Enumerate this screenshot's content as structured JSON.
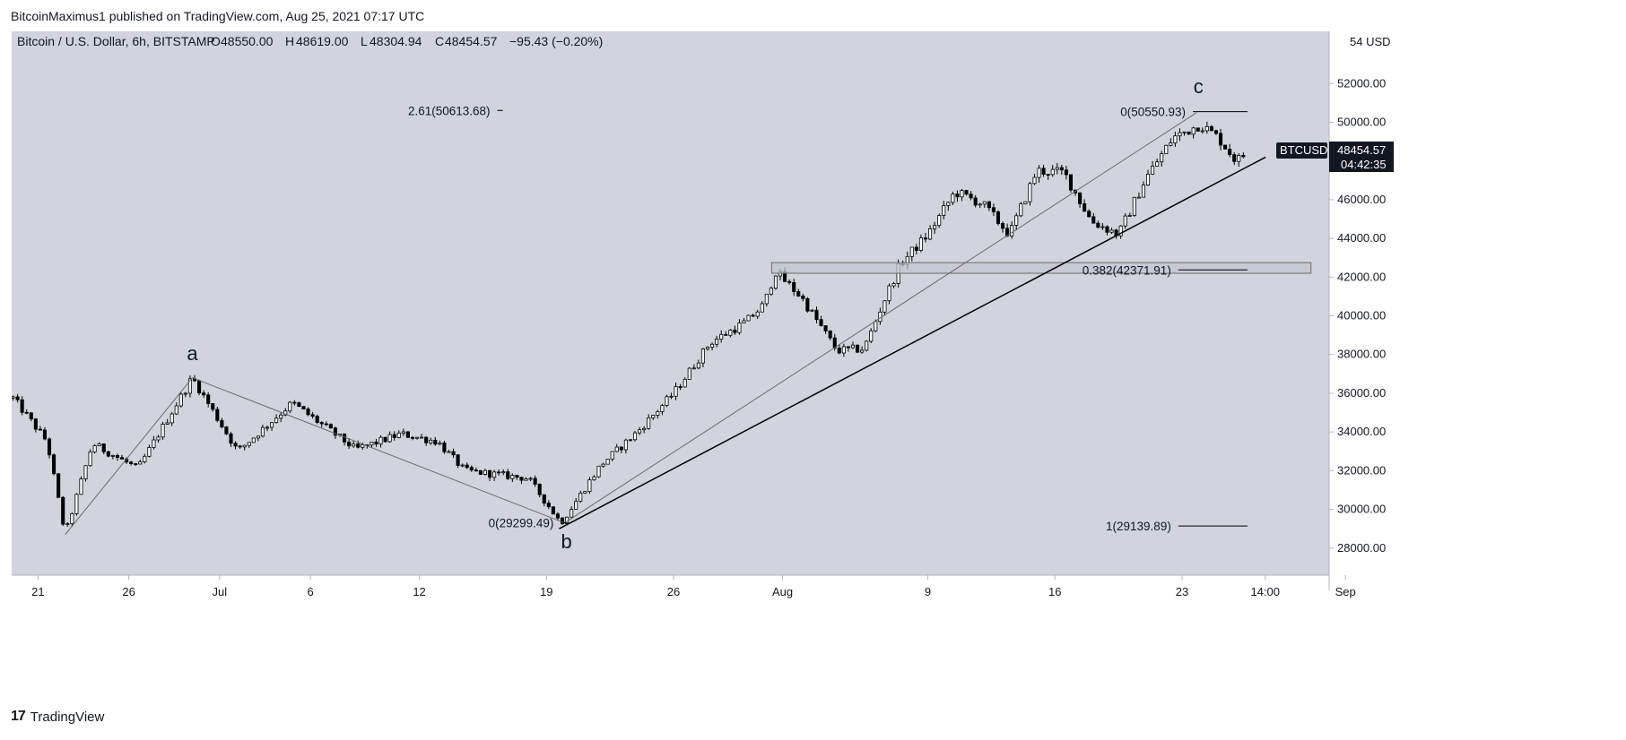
{
  "header": {
    "text": "BitcoinMaximus1 published on TradingView.com, Aug 25, 2021 07:17 UTC"
  },
  "footer": {
    "logo": "17",
    "brand": "TradingView"
  },
  "legend": {
    "symbol": "Bitcoin / U.S. Dollar, 6h, BITSTAMP",
    "o_label": "O",
    "o": "48550.00",
    "h_label": "H",
    "h": "48619.00",
    "l_label": "L",
    "l": "48304.94",
    "c_label": "C",
    "c": "48454.57",
    "change": "−95.43 (−0.20%)"
  },
  "price_tag": {
    "symbol": "BTCUSD",
    "price": "48454.57",
    "countdown": "04:42:35",
    "value": 48454.57
  },
  "colors": {
    "plot_bg": "#d1d4dc",
    "candle_up": "#ffffff",
    "candle_down": "#000000",
    "line": "#000000",
    "thin_line": "#6b6b6b",
    "box_fill": "#c3c6cd",
    "box_stroke": "#6b6b6b"
  },
  "chart_data": {
    "type": "candlestick",
    "title": "Bitcoin / U.S. Dollar, 6h, BITSTAMP",
    "x_ticks": [
      {
        "label": "21",
        "day": 0
      },
      {
        "label": "26",
        "day": 5
      },
      {
        "label": "Jul",
        "day": 10
      },
      {
        "label": "6",
        "day": 15
      },
      {
        "label": "12",
        "day": 21
      },
      {
        "label": "19",
        "day": 28
      },
      {
        "label": "26",
        "day": 35
      },
      {
        "label": "Aug",
        "day": 41
      },
      {
        "label": "9",
        "day": 49
      },
      {
        "label": "16",
        "day": 56
      },
      {
        "label": "23",
        "day": 63
      },
      {
        "label": "14:00",
        "day": 67.58
      },
      {
        "label": "Sep",
        "day": 72
      }
    ],
    "y_ticks": [
      28000,
      30000,
      32000,
      34000,
      36000,
      38000,
      40000,
      42000,
      44000,
      46000,
      48000,
      50000,
      52000
    ],
    "y_ticks_labels": [
      "28000.00",
      "30000.00",
      "32000.00",
      "34000.00",
      "36000.00",
      "38000.00",
      "40000.00",
      "42000.00",
      "44000.00",
      "46000.00",
      "48000.00",
      "50000.00",
      "52000.00"
    ],
    "y_top_label": "54 USD",
    "ylim": [
      26600,
      54700
    ],
    "xlim": [
      -1.45,
      71.1
    ],
    "anchors": [
      {
        "day": -1.5,
        "price": 35900
      },
      {
        "day": 0.5,
        "price": 33500
      },
      {
        "day": 1.5,
        "price": 28700
      },
      {
        "day": 3.0,
        "price": 33400
      },
      {
        "day": 5.5,
        "price": 32100
      },
      {
        "day": 8.5,
        "price": 36800
      },
      {
        "day": 11.0,
        "price": 33000
      },
      {
        "day": 14.0,
        "price": 35500
      },
      {
        "day": 17.5,
        "price": 33100
      },
      {
        "day": 20.0,
        "price": 33900
      },
      {
        "day": 22.0,
        "price": 33500
      },
      {
        "day": 23.5,
        "price": 32000
      },
      {
        "day": 27.0,
        "price": 31600
      },
      {
        "day": 28.8,
        "price": 29300
      },
      {
        "day": 31.0,
        "price": 32300
      },
      {
        "day": 33.0,
        "price": 34000
      },
      {
        "day": 35.0,
        "price": 36000
      },
      {
        "day": 37.0,
        "price": 38600
      },
      {
        "day": 39.0,
        "price": 39700
      },
      {
        "day": 40.0,
        "price": 40600
      },
      {
        "day": 40.6,
        "price": 42300
      },
      {
        "day": 42.0,
        "price": 41000
      },
      {
        "day": 44.0,
        "price": 38200
      },
      {
        "day": 45.5,
        "price": 38300
      },
      {
        "day": 46.5,
        "price": 40600
      },
      {
        "day": 47.5,
        "price": 42700
      },
      {
        "day": 49.0,
        "price": 44200
      },
      {
        "day": 50.5,
        "price": 46400
      },
      {
        "day": 52.0,
        "price": 45800
      },
      {
        "day": 53.5,
        "price": 44200
      },
      {
        "day": 55.0,
        "price": 47500
      },
      {
        "day": 56.5,
        "price": 47400
      },
      {
        "day": 58.0,
        "price": 44900
      },
      {
        "day": 59.5,
        "price": 44200
      },
      {
        "day": 61.0,
        "price": 47100
      },
      {
        "day": 62.5,
        "price": 49200
      },
      {
        "day": 64.0,
        "price": 49900
      },
      {
        "day": 65.0,
        "price": 49200
      },
      {
        "day": 66.0,
        "price": 48000
      },
      {
        "day": 66.6,
        "price": 48454.57
      }
    ],
    "lines": [
      {
        "name": "wave-a-line",
        "style": "thin",
        "points": [
          [
            1.5,
            28700
          ],
          [
            8.5,
            36800
          ],
          [
            29.0,
            29300
          ]
        ]
      },
      {
        "name": "wave-c-channel-line",
        "style": "thin",
        "points": [
          [
            29.0,
            29300
          ],
          [
            63.8,
            50500
          ]
        ]
      },
      {
        "name": "support-line",
        "style": "thick",
        "points": [
          [
            28.7,
            29000
          ],
          [
            67.6,
            48200
          ]
        ]
      }
    ],
    "box": {
      "day_start": 40.4,
      "day_end": 70.1,
      "price_top": 42750,
      "price_bottom": 42200
    },
    "fib_labels": [
      {
        "text": "2.61(50613.68)",
        "day": 24.9,
        "price": 50613.68,
        "line_to": 25.6,
        "align": "right"
      },
      {
        "text": "0(50550.93)",
        "day": 63.2,
        "price": 50550.93,
        "line_to": 66.6,
        "align": "right"
      },
      {
        "text": "0.382(42371.91)",
        "day": 62.4,
        "price": 42371.91,
        "line_to": 66.6,
        "align": "right"
      },
      {
        "text": "1(29139.89)",
        "day": 62.4,
        "price": 29139.89,
        "line_to": 66.6,
        "align": "right"
      },
      {
        "text": "0(29299.49)",
        "day": 28.4,
        "price": 29299.49,
        "line_to": 29.2,
        "align": "right"
      }
    ],
    "wave_labels": [
      {
        "text": "a",
        "day": 8.5,
        "price": 37700
      },
      {
        "text": "b",
        "day": 29.1,
        "price": 28000
      },
      {
        "text": "c",
        "day": 63.9,
        "price": 51500
      }
    ]
  }
}
